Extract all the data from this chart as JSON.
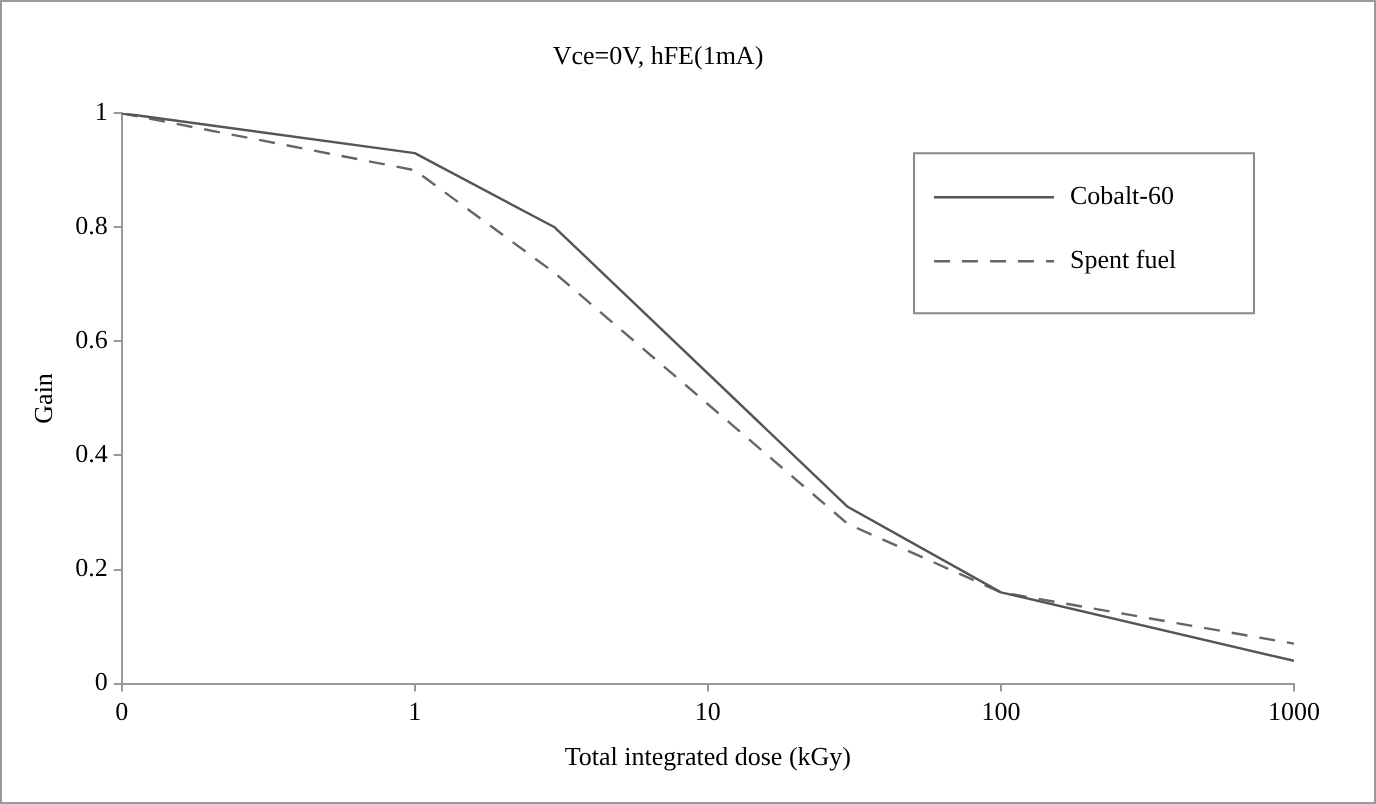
{
  "chart_data": {
    "type": "line",
    "title": "Vce=0V, hFE(1mA)",
    "xlabel": "Total integrated dose (kGy)",
    "ylabel": "Gain",
    "log": "x",
    "xlim": [
      0.1,
      1000
    ],
    "xticks": [
      {
        "value": 0.1,
        "label": "0"
      },
      1,
      10,
      100,
      1000
    ],
    "ylim": [
      0,
      1
    ],
    "yticks": [
      0,
      0.2,
      0.4,
      0.6,
      0.8,
      1
    ],
    "grid": false,
    "legend": "top right",
    "marker": "none",
    "series": [
      {
        "name": "Cobalt-60",
        "color": "#555555",
        "line_style": "solid",
        "x": [
          0.1,
          1,
          3,
          30,
          100,
          1000
        ],
        "values": [
          1.0,
          0.93,
          0.8,
          0.31,
          0.16,
          0.04
        ]
      },
      {
        "name": "Spent fuel",
        "color": "#666666",
        "line_style": "dashed",
        "x": [
          0.1,
          1,
          3,
          30,
          100,
          1000
        ],
        "values": [
          1.0,
          0.9,
          0.72,
          0.28,
          0.16,
          0.07
        ]
      }
    ]
  }
}
